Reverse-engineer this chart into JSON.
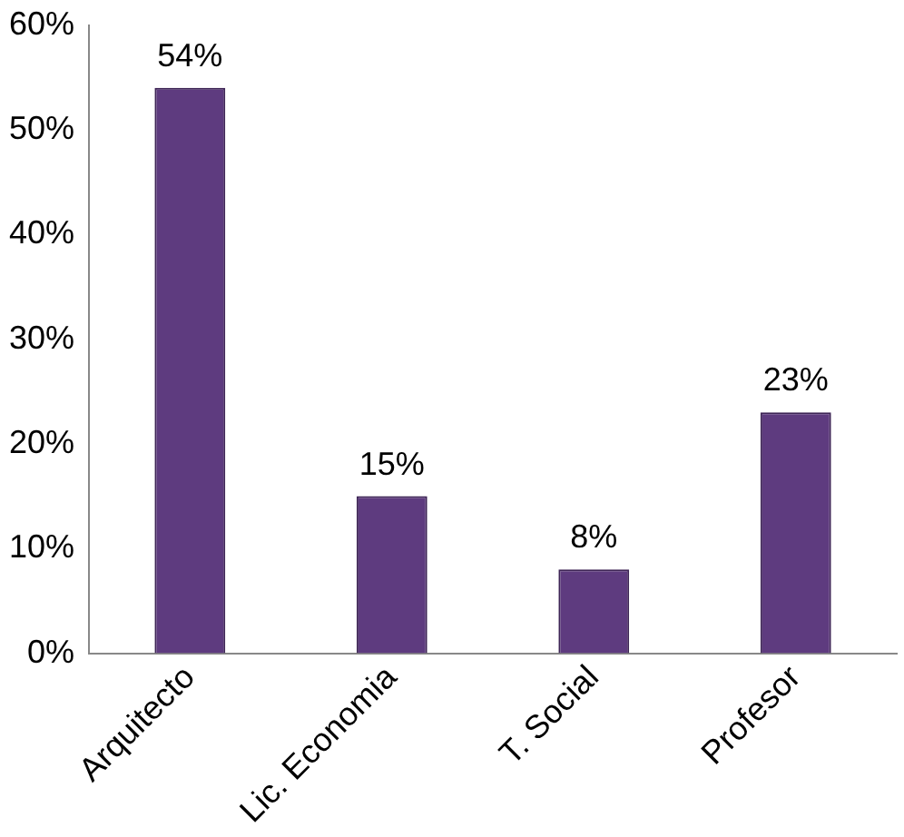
{
  "chart_data": {
    "type": "bar",
    "categories": [
      "Arquitecto",
      "Lic. Economia",
      "T. Social",
      "Profesor"
    ],
    "values": [
      54,
      15,
      8,
      23
    ],
    "color": "#5e3b7f",
    "value_labels": [
      "54%",
      "15%",
      "8%",
      "23%"
    ],
    "ylim": [
      0,
      60
    ],
    "yticks": [
      {
        "value": 0,
        "label": "0%"
      },
      {
        "value": 10,
        "label": "10%"
      },
      {
        "value": 20,
        "label": "20%"
      },
      {
        "value": 30,
        "label": "30%"
      },
      {
        "value": 40,
        "label": "40%"
      },
      {
        "value": 50,
        "label": "50%"
      },
      {
        "value": 60,
        "label": "60%"
      }
    ],
    "grid": false,
    "legend": false
  }
}
